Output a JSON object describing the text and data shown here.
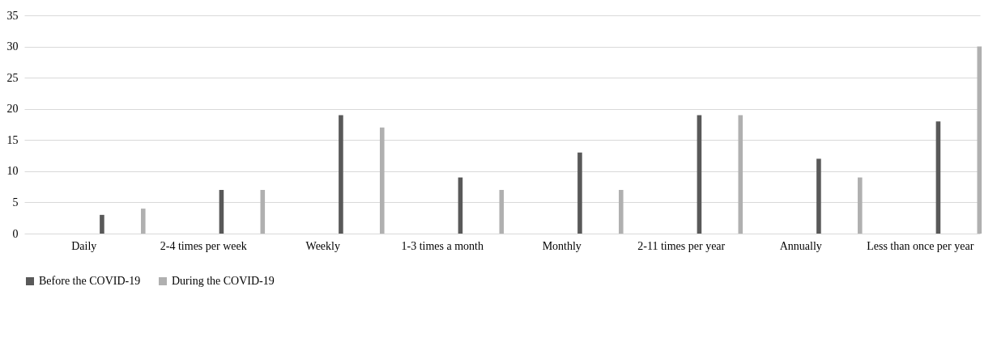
{
  "chart_data": {
    "type": "bar",
    "categories": [
      "Daily",
      "2-4 times per week",
      "Weekly",
      "1-3 times a month",
      "Monthly",
      "2-11 times per year",
      "Annually",
      "Less than once per year"
    ],
    "series": [
      {
        "name": "Before the COVID-19",
        "color": "#595959",
        "values": [
          3,
          7,
          19,
          9,
          13,
          19,
          12,
          18
        ]
      },
      {
        "name": "During the COVID-19",
        "color": "#b0b0b0",
        "values": [
          4,
          7,
          17,
          7,
          7,
          19,
          9,
          30
        ]
      }
    ],
    "ylim": [
      0,
      35
    ],
    "yticks": [
      0,
      5,
      10,
      15,
      20,
      25,
      30,
      35
    ],
    "grid": "y",
    "legend": "bottom"
  }
}
